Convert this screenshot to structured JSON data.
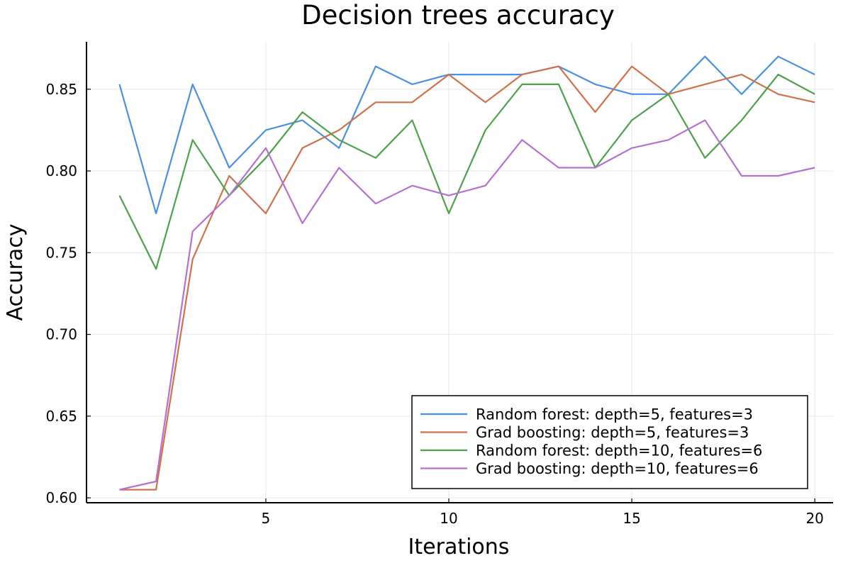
{
  "chart_data": {
    "type": "line",
    "title": "Decision trees accuracy",
    "xlabel": "Iterations",
    "ylabel": "Accuracy",
    "xlim": [
      0.1,
      20.5
    ],
    "ylim": [
      0.597,
      0.879
    ],
    "xticks": [
      5,
      10,
      15,
      20
    ],
    "yticks": [
      0.6,
      0.65,
      0.7,
      0.75,
      0.8,
      0.85
    ],
    "xtick_labels": [
      "5",
      "10",
      "15",
      "20"
    ],
    "ytick_labels": [
      "0.60",
      "0.65",
      "0.70",
      "0.75",
      "0.80",
      "0.85"
    ],
    "grid": true,
    "legend_position": "bottom-right",
    "x": [
      1,
      2,
      3,
      4,
      5,
      6,
      7,
      8,
      9,
      10,
      11,
      12,
      13,
      14,
      15,
      16,
      17,
      18,
      19,
      20
    ],
    "series": [
      {
        "name": "Random forest: depth=5, features=3",
        "color": "#4a90e2",
        "values": [
          0.853,
          0.774,
          0.853,
          0.802,
          0.825,
          0.831,
          0.814,
          0.864,
          0.853,
          0.859,
          0.859,
          0.859,
          0.864,
          0.853,
          0.847,
          0.847,
          0.87,
          0.847,
          0.87,
          0.859
        ]
      },
      {
        "name": "Grad boosting: depth=5, features=3",
        "color": "#d0714a",
        "values": [
          0.605,
          0.605,
          0.746,
          0.797,
          0.774,
          0.814,
          0.825,
          0.842,
          0.842,
          0.859,
          0.842,
          0.859,
          0.864,
          0.836,
          0.864,
          0.847,
          0.853,
          0.859,
          0.847,
          0.842
        ]
      },
      {
        "name": "Random forest: depth=10, features=6",
        "color": "#4ea14c",
        "values": [
          0.785,
          0.74,
          0.819,
          0.785,
          0.808,
          0.836,
          0.819,
          0.808,
          0.831,
          0.774,
          0.825,
          0.853,
          0.853,
          0.802,
          0.831,
          0.847,
          0.808,
          0.831,
          0.859,
          0.847
        ]
      },
      {
        "name": "Grad boosting: depth=10, features=6",
        "color": "#b66fd3",
        "values": [
          0.605,
          0.61,
          0.763,
          0.785,
          0.814,
          0.768,
          0.802,
          0.78,
          0.791,
          0.785,
          0.791,
          0.819,
          0.802,
          0.802,
          0.814,
          0.819,
          0.831,
          0.797,
          0.797,
          0.802
        ]
      }
    ]
  }
}
